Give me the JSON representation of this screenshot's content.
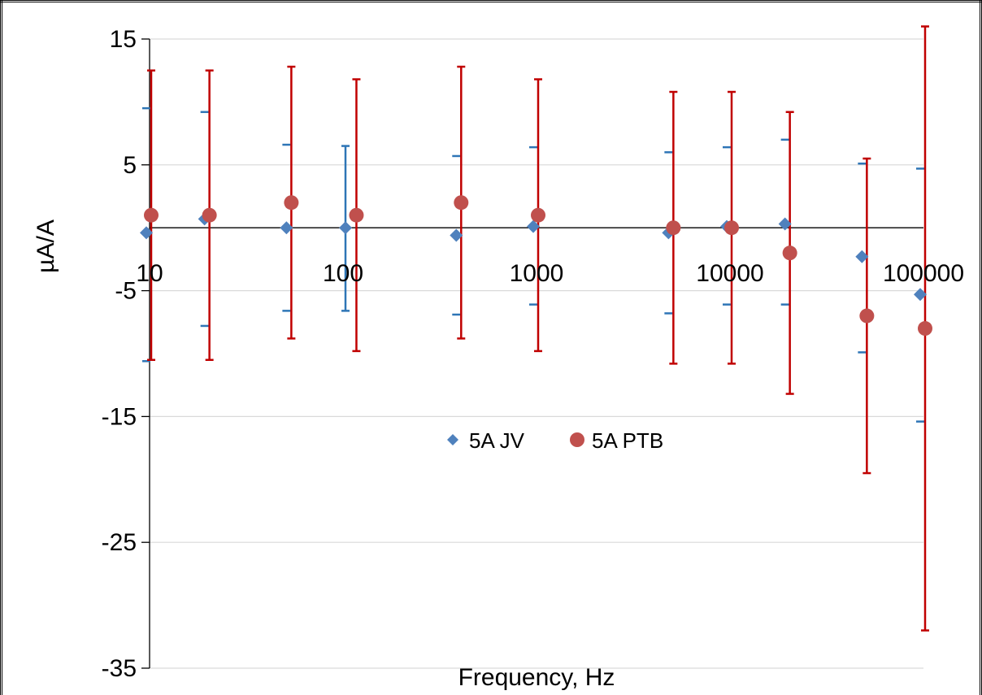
{
  "chart_data": {
    "type": "scatter",
    "xlabel": "Frequency, Hz",
    "ylabel": "µA/A",
    "x_scale": "log",
    "xlim": [
      10,
      100000
    ],
    "ylim": [
      -35,
      15
    ],
    "y_ticks": [
      15,
      5,
      -5,
      -15,
      -25,
      -35
    ],
    "y_tick_labels": [
      "15",
      "5",
      "-5",
      "-15",
      "-25",
      "-35"
    ],
    "x_ticks": [
      10,
      100,
      1000,
      10000,
      100000
    ],
    "x_tick_labels": [
      "10",
      "100",
      "1000",
      "10000",
      "100000"
    ],
    "grid": "horizontal",
    "legend_position": "center",
    "series": [
      {
        "name": "5A JV",
        "color": "#4f81bd",
        "error_color": "#2e75b6",
        "marker": "diamond",
        "points": [
          {
            "x": 10,
            "y": -0.4,
            "err_low": 10.2,
            "err_high": 9.9
          },
          {
            "x": 20,
            "y": 0.7,
            "err_low": 8.5,
            "err_high": 8.5
          },
          {
            "x": 53,
            "y": 0.0,
            "err_low": 6.6,
            "err_high": 6.6
          },
          {
            "x": 107,
            "y": 0.0,
            "err_low": 6.6,
            "err_high": 6.5
          },
          {
            "x": 400,
            "y": -0.6,
            "err_low": 6.3,
            "err_high": 6.3
          },
          {
            "x": 1000,
            "y": 0.1,
            "err_low": 6.2,
            "err_high": 6.3
          },
          {
            "x": 5000,
            "y": -0.4,
            "err_low": 6.4,
            "err_high": 6.4
          },
          {
            "x": 10000,
            "y": 0.1,
            "err_low": 6.2,
            "err_high": 6.3
          },
          {
            "x": 20000,
            "y": 0.3,
            "err_low": 6.4,
            "err_high": 6.7
          },
          {
            "x": 50000,
            "y": -2.3,
            "err_low": 7.6,
            "err_high": 7.4
          },
          {
            "x": 100000,
            "y": -5.3,
            "err_low": 10.1,
            "err_high": 10.0
          }
        ]
      },
      {
        "name": "5A PTB",
        "color": "#c0504d",
        "error_color": "#c00000",
        "marker": "circle",
        "points": [
          {
            "x": 10,
            "y": 1.0,
            "err_low": 11.5,
            "err_high": 11.5
          },
          {
            "x": 20,
            "y": 1.0,
            "err_low": 11.5,
            "err_high": 11.5
          },
          {
            "x": 53,
            "y": 2.0,
            "err_low": 10.8,
            "err_high": 10.8
          },
          {
            "x": 115,
            "y": 1.0,
            "err_low": 10.8,
            "err_high": 10.8
          },
          {
            "x": 400,
            "y": 2.0,
            "err_low": 10.8,
            "err_high": 10.8
          },
          {
            "x": 1000,
            "y": 1.0,
            "err_low": 10.8,
            "err_high": 10.8
          },
          {
            "x": 5000,
            "y": 0.0,
            "err_low": 10.8,
            "err_high": 10.8
          },
          {
            "x": 10000,
            "y": 0.0,
            "err_low": 10.8,
            "err_high": 10.8
          },
          {
            "x": 20000,
            "y": -2.0,
            "err_low": 11.2,
            "err_high": 11.2
          },
          {
            "x": 50000,
            "y": -7.0,
            "err_low": 12.5,
            "err_high": 12.5
          },
          {
            "x": 100000,
            "y": -8.0,
            "err_low": 24.0,
            "err_high": 24.0
          }
        ]
      }
    ]
  }
}
